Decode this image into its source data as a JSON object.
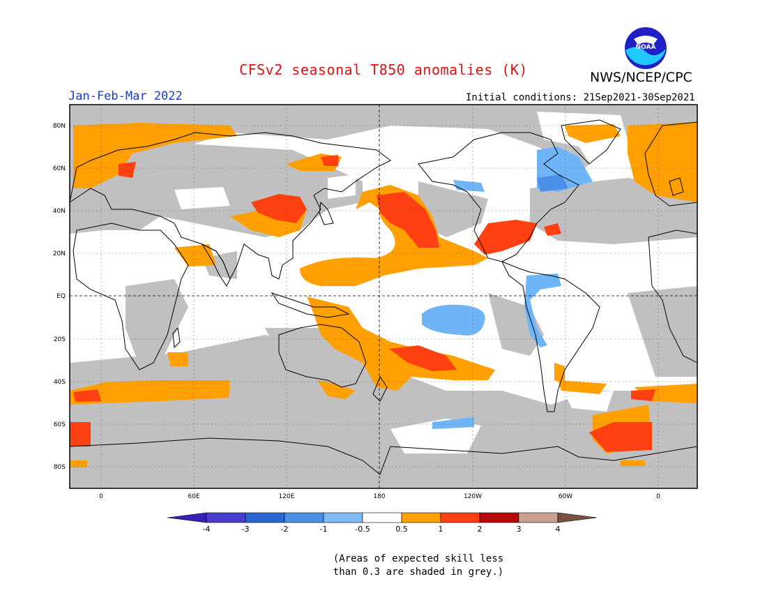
{
  "header": {
    "title": "CFSv2 seasonal T850 anomalies (K)",
    "org": "NWS/NCEP/CPC",
    "logo_text": "NOAA",
    "period": "Jan-Feb-Mar 2022",
    "initial_conditions": "Initial conditions: 21Sep2021-30Sep2021"
  },
  "map": {
    "lat_labels": [
      "80N",
      "60N",
      "40N",
      "20N",
      "EQ",
      "20S",
      "40S",
      "60S",
      "80S"
    ],
    "lon_labels": [
      "0",
      "60E",
      "120E",
      "180",
      "120W",
      "60W",
      "0"
    ],
    "colors": {
      "grey": "#c0c0c0",
      "white": "#ffffff",
      "orange": "#ff9f00",
      "red": "#ff4010",
      "lightblue": "#6eb4f7",
      "blue": "#4a90e8"
    }
  },
  "colorbar": {
    "labels": [
      "-4",
      "-3",
      "-2",
      "-1",
      "-0.5",
      "0.5",
      "1",
      "2",
      "3",
      "4"
    ],
    "colors": [
      "#3620b8",
      "#4a3ccc",
      "#2a66d4",
      "#4a90e8",
      "#7fbaf5",
      "#ffffff",
      "#ff9f00",
      "#ff4010",
      "#b40a0a",
      "#caa090",
      "#7a5040"
    ]
  },
  "note": {
    "line1": "(Areas of expected skill less",
    "line2": "than 0.3 are shaded in grey.)"
  }
}
